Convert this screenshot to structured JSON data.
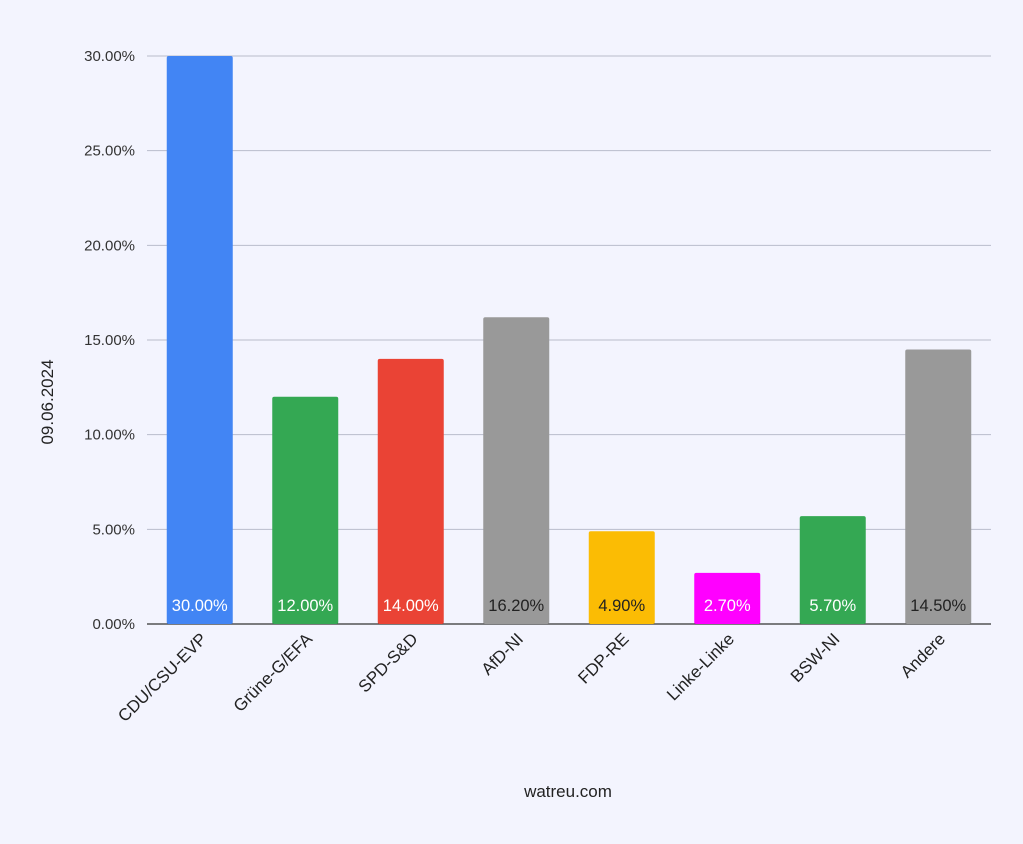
{
  "chart_data": {
    "type": "bar",
    "categories": [
      "CDU/CSU-EVP",
      "Grüne-G/EFA",
      "SPD-S&D",
      "AfD-NI",
      "FDP-RE",
      "Linke-Linke",
      "BSW-NI",
      "Andere"
    ],
    "values": [
      30.0,
      12.0,
      14.0,
      16.2,
      4.9,
      2.7,
      5.7,
      14.5
    ],
    "data_labels": [
      "30.00%",
      "12.00%",
      "14.00%",
      "16.20%",
      "4.90%",
      "2.70%",
      "5.70%",
      "14.50%"
    ],
    "colors": [
      "#4285f4",
      "#34a853",
      "#ea4335",
      "#999999",
      "#fbbc04",
      "#ff00ff",
      "#34a853",
      "#999999"
    ],
    "label_colors": [
      "#ffffff",
      "#ffffff",
      "#ffffff",
      "#222222",
      "#222222",
      "#ffffff",
      "#ffffff",
      "#222222"
    ],
    "ylabel": "09.06.2024",
    "xlabel": "watreu.com",
    "ylim": [
      0,
      30
    ],
    "yticks": [
      0,
      5,
      10,
      15,
      20,
      25,
      30
    ],
    "ytick_labels": [
      "0.00%",
      "5.00%",
      "10.00%",
      "15.00%",
      "20.00%",
      "25.00%",
      "30.00%"
    ],
    "grid": true,
    "legend": "none"
  }
}
